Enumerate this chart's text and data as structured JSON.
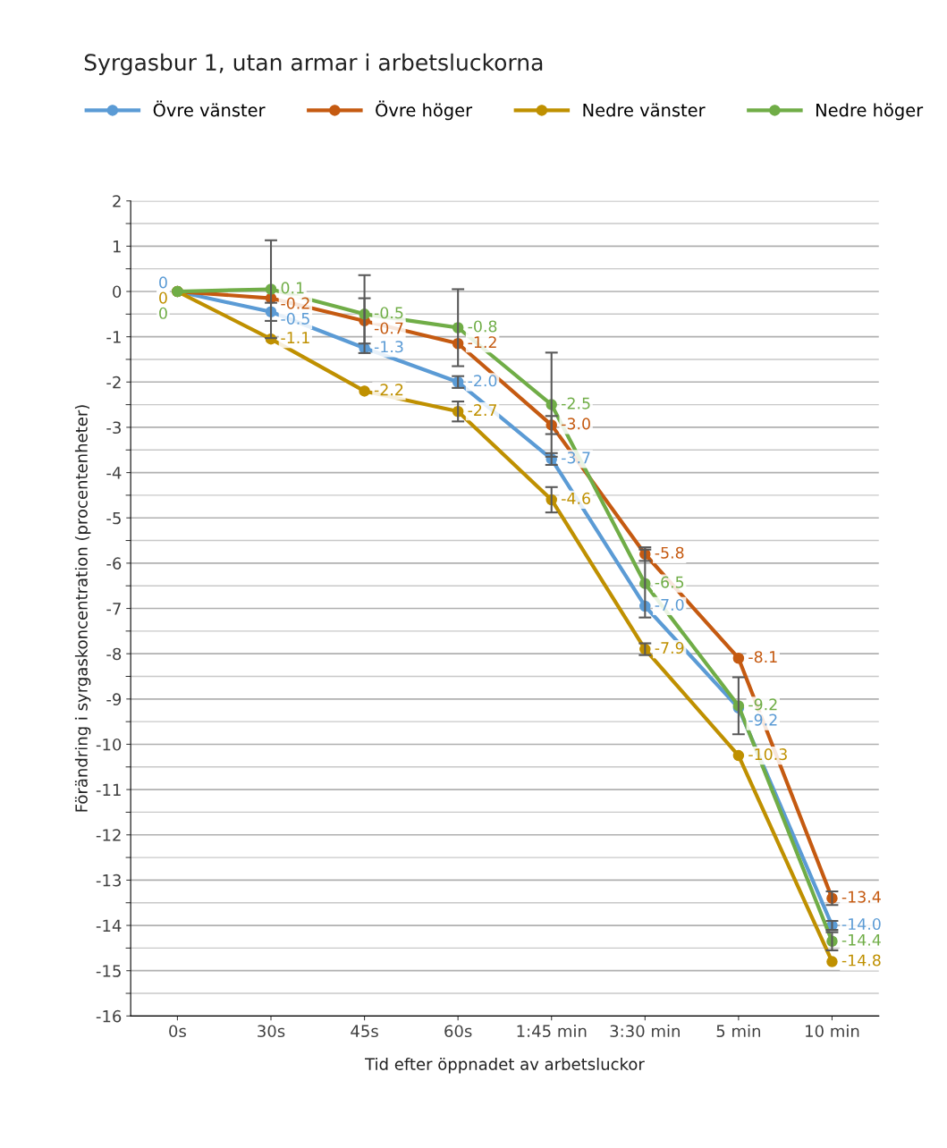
{
  "chart_data": {
    "type": "line",
    "title": "Syrgasbur 1, utan armar i arbetsluckorna",
    "xlabel": "Tid efter öppnadet av arbetsluckor",
    "ylabel": "Förändring i syrgaskoncentration (procentenheter)",
    "categories": [
      "0s",
      "30s",
      "45s",
      "60s",
      "1:45 min",
      "3:30 min",
      "5 min",
      "10 min"
    ],
    "series": [
      {
        "name": "Övre vänster",
        "color": "#5b9bd5",
        "values": [
          0,
          -0.45,
          -1.25,
          -2.0,
          -3.7,
          -6.95,
          -9.2,
          -14.0
        ],
        "value_labels": [
          "0",
          "-0.5",
          "-1.3",
          "-2.0",
          "-3.7",
          "-7.0",
          "-9.2",
          "-14.0"
        ],
        "errors": [
          null,
          0.2,
          null,
          0.13,
          0.13,
          null,
          null,
          0.1
        ]
      },
      {
        "name": "Övre höger",
        "color": "#c55a11",
        "values": [
          0,
          -0.15,
          -0.65,
          -1.15,
          -2.95,
          -5.8,
          -8.1,
          -13.4
        ],
        "value_labels": [
          null,
          "-0.2",
          "-0.7",
          "-1.2",
          "-3.0",
          "-5.8",
          "-8.1",
          "-13.4"
        ],
        "errors": [
          null,
          null,
          0.5,
          null,
          0.2,
          0.15,
          null,
          0.15
        ]
      },
      {
        "name": "Nedre vänster",
        "color": "#bf9000",
        "values": [
          0,
          -1.05,
          -2.2,
          -2.65,
          -4.6,
          -7.9,
          -10.25,
          -14.8
        ],
        "value_labels": [
          "0",
          "-1.1",
          "-2.2",
          "-2.7",
          "-4.6",
          "-7.9",
          "-10.3",
          "-14.8"
        ],
        "errors": [
          null,
          null,
          null,
          0.22,
          0.28,
          0.13,
          null,
          null
        ]
      },
      {
        "name": "Nedre höger",
        "color": "#70ad47",
        "values": [
          0,
          0.05,
          -0.5,
          -0.8,
          -2.5,
          -6.45,
          -9.15,
          -14.35
        ],
        "value_labels": [
          "0",
          "0.1",
          "-0.5",
          "-0.8",
          "-2.5",
          "-6.5",
          "-9.2",
          "-14.4"
        ],
        "errors": [
          null,
          1.08,
          0.86,
          0.85,
          1.15,
          0.75,
          0.63,
          0.2
        ]
      }
    ],
    "ylim": [
      -16,
      2
    ],
    "yticks": [
      -16,
      -15,
      -14,
      -13,
      -12,
      -11,
      -10,
      -9,
      -8,
      -7,
      -6,
      -5,
      -4,
      -3,
      -2,
      -1,
      0,
      1,
      2
    ],
    "grid": "y",
    "legend": "top",
    "marker": "circle",
    "line_style": "solid"
  }
}
